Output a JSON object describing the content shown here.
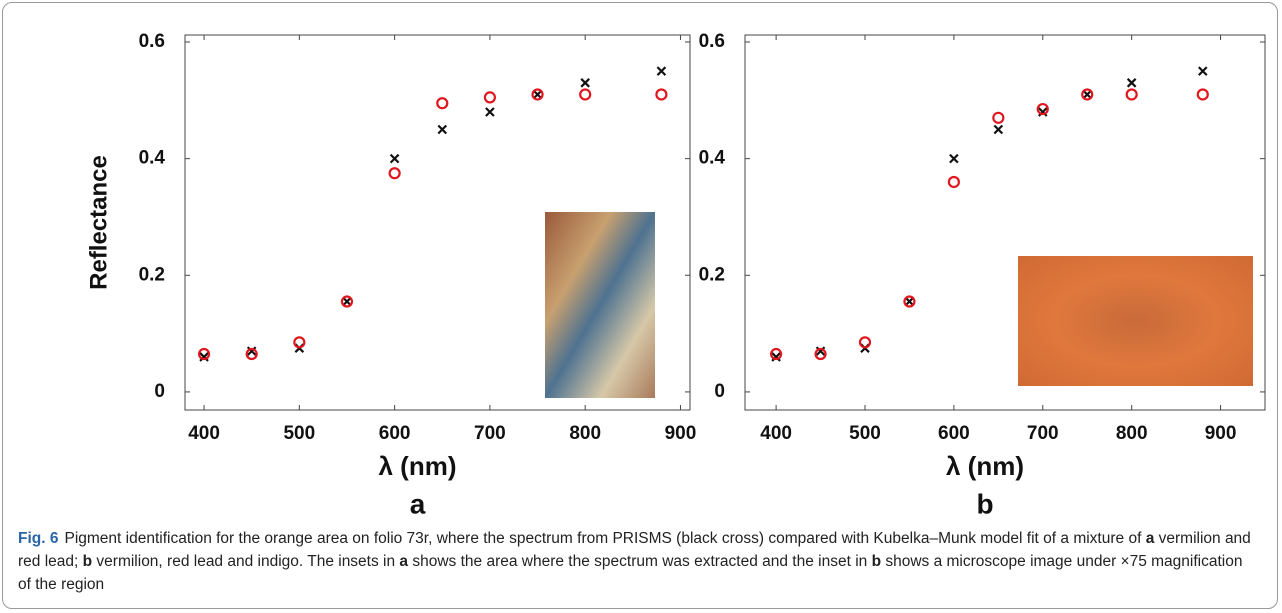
{
  "chart_data": [
    {
      "type": "scatter",
      "label": "a",
      "x_label": "λ (nm)",
      "y_label": "Reflectance",
      "x": [
        400,
        450,
        500,
        550,
        600,
        650,
        700,
        750,
        800,
        880
      ],
      "series": [
        {
          "color": "#111111",
          "marker": "cross",
          "values": [
            0.06,
            0.07,
            0.075,
            0.155,
            0.4,
            0.45,
            0.48,
            0.51,
            0.53,
            0.55
          ]
        },
        {
          "color": "#e0161e",
          "marker": "circle",
          "values": [
            0.065,
            0.065,
            0.085,
            0.155,
            0.375,
            0.495,
            0.505,
            0.51,
            0.51,
            0.51
          ]
        }
      ],
      "xlim": [
        380,
        910
      ],
      "ylim": [
        -0.031,
        0.612
      ],
      "xticks": [
        400,
        500,
        600,
        700,
        800,
        900
      ],
      "yticks": [
        {
          "value": 0,
          "label": "0"
        },
        0.2,
        0.4,
        0.6
      ]
    },
    {
      "type": "scatter",
      "label": "b",
      "x_label": "λ (nm)",
      "x": [
        400,
        450,
        500,
        550,
        600,
        650,
        700,
        750,
        800,
        880
      ],
      "series": [
        {
          "color": "#111111",
          "marker": "cross",
          "values": [
            0.06,
            0.07,
            0.075,
            0.155,
            0.4,
            0.45,
            0.48,
            0.51,
            0.53,
            0.55
          ]
        },
        {
          "color": "#e0161e",
          "marker": "circle",
          "values": [
            0.065,
            0.065,
            0.085,
            0.155,
            0.36,
            0.47,
            0.485,
            0.51,
            0.51,
            0.51
          ]
        }
      ],
      "xlim": [
        365,
        950
      ],
      "ylim": [
        -0.031,
        0.612
      ],
      "xticks": [
        400,
        500,
        600,
        700,
        800,
        900
      ],
      "yticks": [
        {
          "value": 0,
          "label": "0"
        },
        0.2,
        0.4,
        0.6
      ]
    }
  ],
  "caption": [
    {
      "text": "Fig. 6",
      "bold": true
    },
    {
      "text": "Pigment identification for the orange area on folio 73r, where the spectrum from PRISMS (black cross) compared with Kubelka–Munk model fit of a mixture of ",
      "bold": false
    },
    {
      "text": "a",
      "bold": true
    },
    {
      "text": " vermilion and red lead; ",
      "bold": false
    },
    {
      "text": "b",
      "bold": true
    },
    {
      "text": " vermilion, red lead and indigo. The insets in ",
      "bold": false
    },
    {
      "text": "a",
      "bold": true
    },
    {
      "text": " shows the area where the spectrum was extracted and the inset in ",
      "bold": false
    },
    {
      "text": "b",
      "bold": true
    },
    {
      "text": " shows a microscope image under ×75 magnification of the region",
      "bold": false
    }
  ]
}
